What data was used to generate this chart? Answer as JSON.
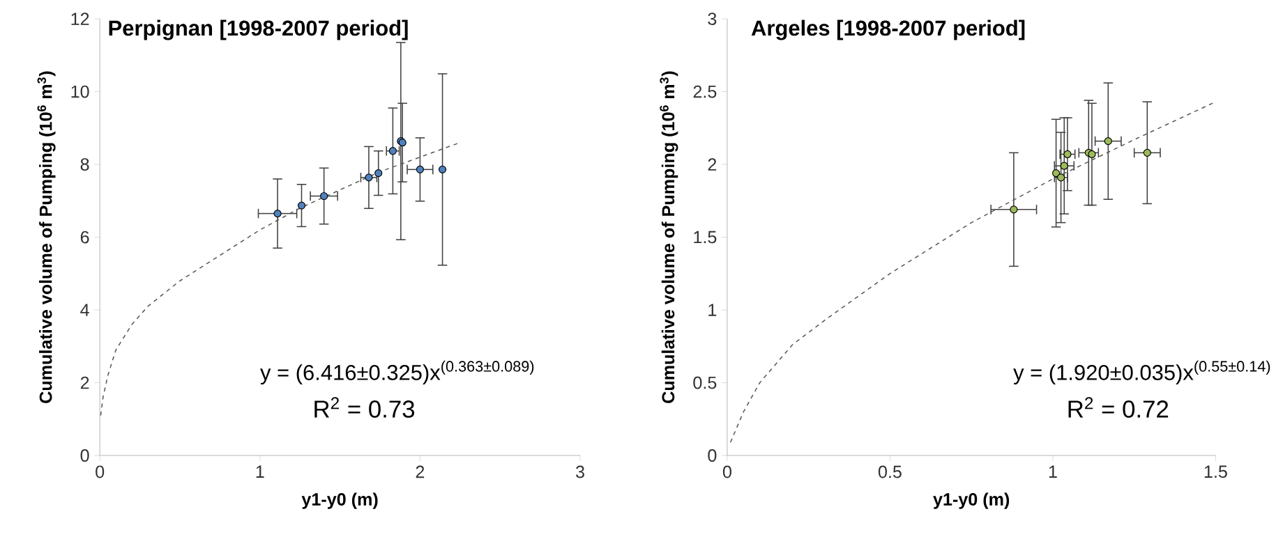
{
  "chart_data": [
    {
      "type": "scatter",
      "title": "Perpignan [1998-2007 period]",
      "xlabel": "y1-y0 (m)",
      "ylabel": "Cumulative volume of Pumping (10$^{6}$ m$^{3}$)",
      "xlim": [
        0,
        3
      ],
      "xticks": [
        0,
        1,
        2,
        3
      ],
      "ylim": [
        0,
        12
      ],
      "yticks": [
        0,
        2,
        4,
        6,
        8,
        10,
        12
      ],
      "grid": false,
      "annotations": [
        "y = (6.416±0.325)x$^{(0.363±0.089)}$",
        "R$^{2}$ = 0.73"
      ],
      "series": [
        {
          "color": "#4f81bd",
          "marker": "circle",
          "x": [
            1.11,
            1.26,
            1.4,
            1.68,
            1.74,
            1.83,
            1.88,
            1.89,
            2.0,
            2.14
          ],
          "values": [
            6.65,
            6.87,
            7.13,
            7.64,
            7.76,
            8.37,
            8.64,
            8.6,
            7.86,
            7.86
          ],
          "errors": [
            0.95,
            0.58,
            0.77,
            0.85,
            0.61,
            1.18,
            2.71,
            1.08,
            0.87,
            2.63
          ],
          "xerrors": [
            0.12,
            null,
            0.085,
            0.05,
            null,
            0.04,
            null,
            null,
            0.08,
            null
          ]
        },
        {
          "type": "line",
          "color": "#595959",
          "line_style": "dashed",
          "marker": "none",
          "x": [
            0.005,
            0.02,
            0.05,
            0.1,
            0.2,
            0.3,
            0.5,
            0.75,
            1.0,
            1.25,
            1.5,
            1.75,
            2.0,
            2.25
          ],
          "values": [
            1.1,
            1.6,
            2.2,
            2.9,
            3.6,
            4.1,
            4.8,
            5.5,
            6.2,
            6.8,
            7.3,
            7.8,
            8.2,
            8.6
          ]
        }
      ]
    },
    {
      "type": "scatter",
      "title": "Argeles [1998-2007 period]",
      "xlabel": "y1-y0 (m)",
      "ylabel": "Cumulative volume of Pumping (10$^{6}$ m$^{3}$)",
      "xlim": [
        0,
        1.5
      ],
      "xticks": [
        0,
        0.5,
        1,
        1.5
      ],
      "ylim": [
        0,
        3
      ],
      "yticks": [
        0,
        0.5,
        1,
        1.5,
        2,
        2.5,
        3
      ],
      "grid": false,
      "annotations": [
        "y = (1.920±0.035)x$^{(0.55±0.14)}$",
        "R$^{2}$ = 0.72"
      ],
      "series": [
        {
          "color": "#9bbb59",
          "marker": "circle",
          "x": [
            0.88,
            1.01,
            1.045,
            1.035,
            1.025,
            1.11,
            1.12,
            1.17,
            1.29
          ],
          "values": [
            1.69,
            1.94,
            2.07,
            1.99,
            1.91,
            2.08,
            2.07,
            2.16,
            2.08
          ],
          "errors": [
            0.39,
            0.37,
            0.25,
            0.33,
            0.31,
            0.36,
            0.35,
            0.4,
            0.35
          ],
          "xerrors": [
            0.07,
            null,
            0.023,
            0.03,
            0.02,
            0.03,
            null,
            0.04,
            0.04
          ]
        },
        {
          "type": "line",
          "color": "#595959",
          "line_style": "dashed",
          "marker": "none",
          "x": [
            0.01,
            0.05,
            0.1,
            0.2,
            0.3,
            0.5,
            0.75,
            1.0,
            1.25,
            1.5
          ],
          "values": [
            0.09,
            0.3,
            0.5,
            0.76,
            0.93,
            1.25,
            1.6,
            1.9,
            2.17,
            2.43
          ]
        }
      ]
    }
  ]
}
